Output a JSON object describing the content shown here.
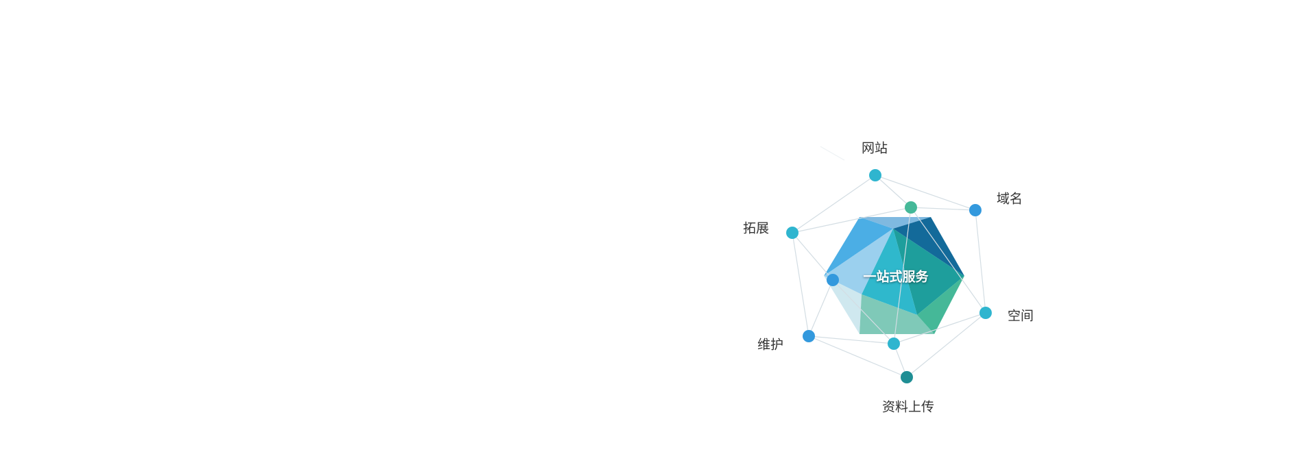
{
  "center_label": "一站式服务",
  "nodes": [
    {
      "label": "网站",
      "color": "#2fb5cf"
    },
    {
      "label": "域名",
      "color": "#3399dd"
    },
    {
      "label": "空间",
      "color": "#2fb5cf"
    },
    {
      "label": "资料上传",
      "color": "#1f8e94"
    },
    {
      "label": "维护",
      "color": "#3399dd"
    },
    {
      "label": "拓展",
      "color": "#2fb5cf"
    }
  ],
  "inner_node_colors": [
    "#45b898",
    "#3399dd",
    "#2fb5cf"
  ],
  "facet_colors": [
    "#4baee5",
    "#7fb9e0",
    "#136a9a",
    "#1e9e9c",
    "#2fb8cc",
    "#9bd0ee",
    "#cfe8ef",
    "#7fc9b8",
    "#45b898"
  ],
  "line_color": "#d3dde3"
}
